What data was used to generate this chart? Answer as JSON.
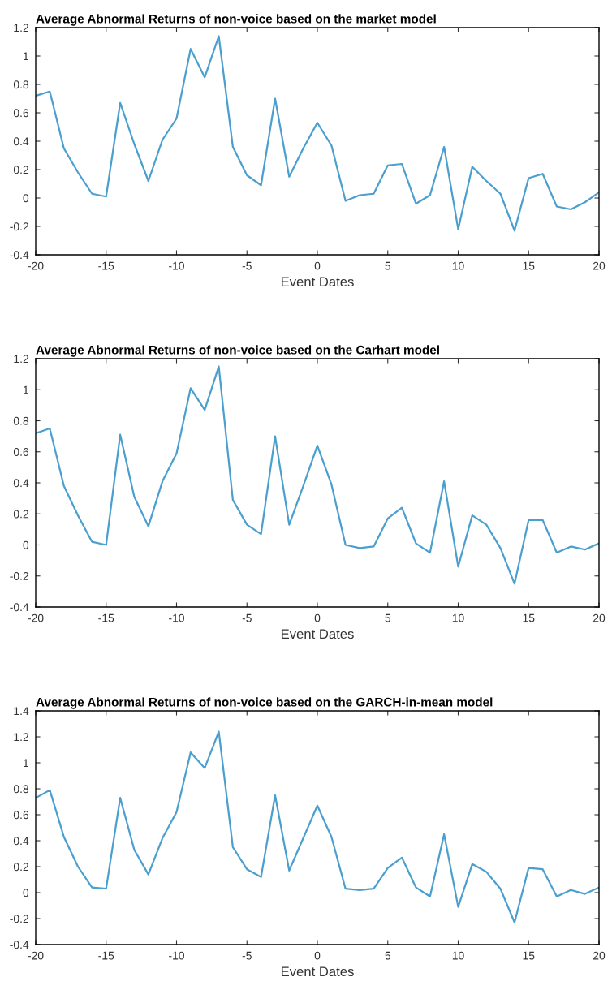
{
  "chart_data": [
    {
      "type": "line",
      "title": "Average Abnormal Returns of non-voice based on the market model",
      "xlabel": "Event Dates",
      "x": [
        -20,
        -19,
        -18,
        -17,
        -16,
        -15,
        -14,
        -13,
        -12,
        -11,
        -10,
        -9,
        -8,
        -7,
        -6,
        -5,
        -4,
        -3,
        -2,
        -1,
        0,
        1,
        2,
        3,
        4,
        5,
        6,
        7,
        8,
        9,
        10,
        11,
        12,
        13,
        14,
        15,
        16,
        17,
        18,
        19,
        20
      ],
      "series": [
        {
          "color": "#4a9fcf",
          "values": [
            0.72,
            0.75,
            0.35,
            0.18,
            0.03,
            0.01,
            0.67,
            0.38,
            0.12,
            0.41,
            0.56,
            1.05,
            0.85,
            1.14,
            0.36,
            0.16,
            0.09,
            0.7,
            0.15,
            0.35,
            0.53,
            0.37,
            -0.02,
            0.02,
            0.03,
            0.23,
            0.24,
            -0.04,
            0.02,
            0.36,
            -0.22,
            0.22,
            0.12,
            0.03,
            -0.23,
            0.14,
            0.17,
            -0.06,
            -0.08,
            -0.03,
            0.04
          ]
        }
      ],
      "xlim": [
        -20,
        20
      ],
      "xticks": [
        -20,
        -15,
        -10,
        -5,
        0,
        5,
        10,
        15,
        20
      ],
      "ylim": [
        -0.4,
        1.2
      ],
      "yticks": [
        -0.4,
        -0.2,
        0,
        0.2,
        0.4,
        0.6,
        0.8,
        1,
        1.2
      ],
      "grid": false,
      "legend": false,
      "marker": "none",
      "line_style": "solid"
    },
    {
      "type": "line",
      "title": "Average Abnormal Returns of non-voice based on the Carhart model",
      "xlabel": "Event Dates",
      "x": [
        -20,
        -19,
        -18,
        -17,
        -16,
        -15,
        -14,
        -13,
        -12,
        -11,
        -10,
        -9,
        -8,
        -7,
        -6,
        -5,
        -4,
        -3,
        -2,
        -1,
        0,
        1,
        2,
        3,
        4,
        5,
        6,
        7,
        8,
        9,
        10,
        11,
        12,
        13,
        14,
        15,
        16,
        17,
        18,
        19,
        20
      ],
      "series": [
        {
          "color": "#4a9fcf",
          "values": [
            0.72,
            0.75,
            0.38,
            0.19,
            0.02,
            0.0,
            0.71,
            0.31,
            0.12,
            0.41,
            0.59,
            1.01,
            0.87,
            1.15,
            0.29,
            0.13,
            0.07,
            0.7,
            0.13,
            0.38,
            0.64,
            0.39,
            0.0,
            -0.02,
            -0.01,
            0.17,
            0.24,
            0.01,
            -0.05,
            0.41,
            -0.14,
            0.19,
            0.13,
            -0.02,
            -0.25,
            0.16,
            0.16,
            -0.05,
            -0.01,
            -0.03,
            0.01
          ]
        }
      ],
      "xlim": [
        -20,
        20
      ],
      "xticks": [
        -20,
        -15,
        -10,
        -5,
        0,
        5,
        10,
        15,
        20
      ],
      "ylim": [
        -0.4,
        1.2
      ],
      "yticks": [
        -0.4,
        -0.2,
        0,
        0.2,
        0.4,
        0.6,
        0.8,
        1,
        1.2
      ],
      "grid": false,
      "legend": false,
      "marker": "none",
      "line_style": "solid"
    },
    {
      "type": "line",
      "title": "Average Abnormal Returns of non-voice based on the GARCH-in-mean model",
      "xlabel": "Event Dates",
      "x": [
        -20,
        -19,
        -18,
        -17,
        -16,
        -15,
        -14,
        -13,
        -12,
        -11,
        -10,
        -9,
        -8,
        -7,
        -6,
        -5,
        -4,
        -3,
        -2,
        -1,
        0,
        1,
        2,
        3,
        4,
        5,
        6,
        7,
        8,
        9,
        10,
        11,
        12,
        13,
        14,
        15,
        16,
        17,
        18,
        19,
        20
      ],
      "series": [
        {
          "color": "#4a9fcf",
          "values": [
            0.73,
            0.79,
            0.43,
            0.2,
            0.04,
            0.03,
            0.73,
            0.33,
            0.14,
            0.42,
            0.62,
            1.08,
            0.96,
            1.24,
            0.35,
            0.18,
            0.12,
            0.75,
            0.17,
            0.42,
            0.67,
            0.43,
            0.03,
            0.02,
            0.03,
            0.19,
            0.27,
            0.04,
            -0.03,
            0.45,
            -0.11,
            0.22,
            0.16,
            0.03,
            -0.23,
            0.19,
            0.18,
            -0.03,
            0.02,
            -0.01,
            0.04
          ]
        }
      ],
      "xlim": [
        -20,
        20
      ],
      "xticks": [
        -20,
        -15,
        -10,
        -5,
        0,
        5,
        10,
        15,
        20
      ],
      "ylim": [
        -0.4,
        1.4
      ],
      "yticks": [
        -0.4,
        -0.2,
        0,
        0.2,
        0.4,
        0.6,
        0.8,
        1,
        1.2,
        1.4
      ],
      "grid": false,
      "legend": false,
      "marker": "none",
      "line_style": "solid"
    }
  ]
}
